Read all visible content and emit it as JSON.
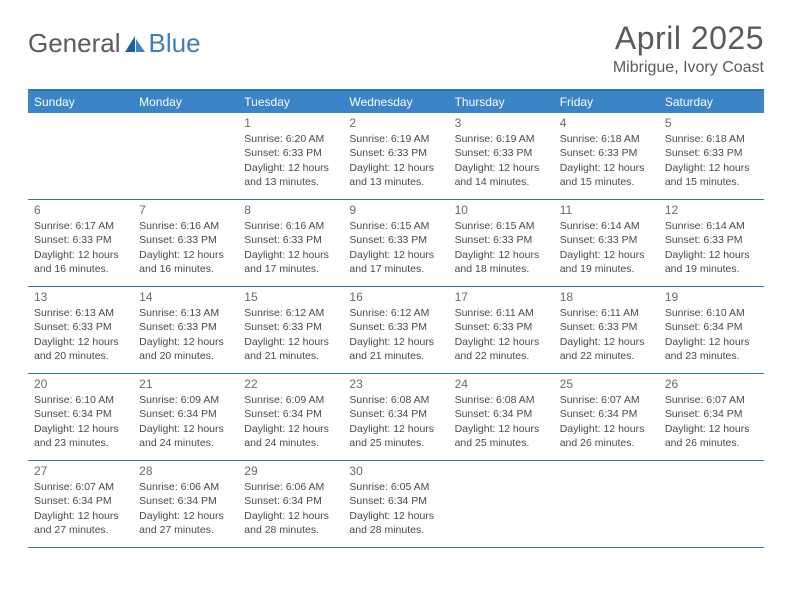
{
  "logo": {
    "general": "General",
    "blue": "Blue"
  },
  "title": "April 2025",
  "location": "Mibrigue, Ivory Coast",
  "colors": {
    "header_bg": "#3a84c7",
    "border": "#2f73b6",
    "text": "#4a4a4a",
    "logo_blue": "#3a7fc4",
    "logo_gray": "#5b5b5b",
    "background": "#ffffff"
  },
  "weekdays": [
    "Sunday",
    "Monday",
    "Tuesday",
    "Wednesday",
    "Thursday",
    "Friday",
    "Saturday"
  ],
  "weeks": [
    [
      null,
      null,
      {
        "date": "1",
        "sunrise": "Sunrise: 6:20 AM",
        "sunset": "Sunset: 6:33 PM",
        "daylight1": "Daylight: 12 hours",
        "daylight2": "and 13 minutes."
      },
      {
        "date": "2",
        "sunrise": "Sunrise: 6:19 AM",
        "sunset": "Sunset: 6:33 PM",
        "daylight1": "Daylight: 12 hours",
        "daylight2": "and 13 minutes."
      },
      {
        "date": "3",
        "sunrise": "Sunrise: 6:19 AM",
        "sunset": "Sunset: 6:33 PM",
        "daylight1": "Daylight: 12 hours",
        "daylight2": "and 14 minutes."
      },
      {
        "date": "4",
        "sunrise": "Sunrise: 6:18 AM",
        "sunset": "Sunset: 6:33 PM",
        "daylight1": "Daylight: 12 hours",
        "daylight2": "and 15 minutes."
      },
      {
        "date": "5",
        "sunrise": "Sunrise: 6:18 AM",
        "sunset": "Sunset: 6:33 PM",
        "daylight1": "Daylight: 12 hours",
        "daylight2": "and 15 minutes."
      }
    ],
    [
      {
        "date": "6",
        "sunrise": "Sunrise: 6:17 AM",
        "sunset": "Sunset: 6:33 PM",
        "daylight1": "Daylight: 12 hours",
        "daylight2": "and 16 minutes."
      },
      {
        "date": "7",
        "sunrise": "Sunrise: 6:16 AM",
        "sunset": "Sunset: 6:33 PM",
        "daylight1": "Daylight: 12 hours",
        "daylight2": "and 16 minutes."
      },
      {
        "date": "8",
        "sunrise": "Sunrise: 6:16 AM",
        "sunset": "Sunset: 6:33 PM",
        "daylight1": "Daylight: 12 hours",
        "daylight2": "and 17 minutes."
      },
      {
        "date": "9",
        "sunrise": "Sunrise: 6:15 AM",
        "sunset": "Sunset: 6:33 PM",
        "daylight1": "Daylight: 12 hours",
        "daylight2": "and 17 minutes."
      },
      {
        "date": "10",
        "sunrise": "Sunrise: 6:15 AM",
        "sunset": "Sunset: 6:33 PM",
        "daylight1": "Daylight: 12 hours",
        "daylight2": "and 18 minutes."
      },
      {
        "date": "11",
        "sunrise": "Sunrise: 6:14 AM",
        "sunset": "Sunset: 6:33 PM",
        "daylight1": "Daylight: 12 hours",
        "daylight2": "and 19 minutes."
      },
      {
        "date": "12",
        "sunrise": "Sunrise: 6:14 AM",
        "sunset": "Sunset: 6:33 PM",
        "daylight1": "Daylight: 12 hours",
        "daylight2": "and 19 minutes."
      }
    ],
    [
      {
        "date": "13",
        "sunrise": "Sunrise: 6:13 AM",
        "sunset": "Sunset: 6:33 PM",
        "daylight1": "Daylight: 12 hours",
        "daylight2": "and 20 minutes."
      },
      {
        "date": "14",
        "sunrise": "Sunrise: 6:13 AM",
        "sunset": "Sunset: 6:33 PM",
        "daylight1": "Daylight: 12 hours",
        "daylight2": "and 20 minutes."
      },
      {
        "date": "15",
        "sunrise": "Sunrise: 6:12 AM",
        "sunset": "Sunset: 6:33 PM",
        "daylight1": "Daylight: 12 hours",
        "daylight2": "and 21 minutes."
      },
      {
        "date": "16",
        "sunrise": "Sunrise: 6:12 AM",
        "sunset": "Sunset: 6:33 PM",
        "daylight1": "Daylight: 12 hours",
        "daylight2": "and 21 minutes."
      },
      {
        "date": "17",
        "sunrise": "Sunrise: 6:11 AM",
        "sunset": "Sunset: 6:33 PM",
        "daylight1": "Daylight: 12 hours",
        "daylight2": "and 22 minutes."
      },
      {
        "date": "18",
        "sunrise": "Sunrise: 6:11 AM",
        "sunset": "Sunset: 6:33 PM",
        "daylight1": "Daylight: 12 hours",
        "daylight2": "and 22 minutes."
      },
      {
        "date": "19",
        "sunrise": "Sunrise: 6:10 AM",
        "sunset": "Sunset: 6:34 PM",
        "daylight1": "Daylight: 12 hours",
        "daylight2": "and 23 minutes."
      }
    ],
    [
      {
        "date": "20",
        "sunrise": "Sunrise: 6:10 AM",
        "sunset": "Sunset: 6:34 PM",
        "daylight1": "Daylight: 12 hours",
        "daylight2": "and 23 minutes."
      },
      {
        "date": "21",
        "sunrise": "Sunrise: 6:09 AM",
        "sunset": "Sunset: 6:34 PM",
        "daylight1": "Daylight: 12 hours",
        "daylight2": "and 24 minutes."
      },
      {
        "date": "22",
        "sunrise": "Sunrise: 6:09 AM",
        "sunset": "Sunset: 6:34 PM",
        "daylight1": "Daylight: 12 hours",
        "daylight2": "and 24 minutes."
      },
      {
        "date": "23",
        "sunrise": "Sunrise: 6:08 AM",
        "sunset": "Sunset: 6:34 PM",
        "daylight1": "Daylight: 12 hours",
        "daylight2": "and 25 minutes."
      },
      {
        "date": "24",
        "sunrise": "Sunrise: 6:08 AM",
        "sunset": "Sunset: 6:34 PM",
        "daylight1": "Daylight: 12 hours",
        "daylight2": "and 25 minutes."
      },
      {
        "date": "25",
        "sunrise": "Sunrise: 6:07 AM",
        "sunset": "Sunset: 6:34 PM",
        "daylight1": "Daylight: 12 hours",
        "daylight2": "and 26 minutes."
      },
      {
        "date": "26",
        "sunrise": "Sunrise: 6:07 AM",
        "sunset": "Sunset: 6:34 PM",
        "daylight1": "Daylight: 12 hours",
        "daylight2": "and 26 minutes."
      }
    ],
    [
      {
        "date": "27",
        "sunrise": "Sunrise: 6:07 AM",
        "sunset": "Sunset: 6:34 PM",
        "daylight1": "Daylight: 12 hours",
        "daylight2": "and 27 minutes."
      },
      {
        "date": "28",
        "sunrise": "Sunrise: 6:06 AM",
        "sunset": "Sunset: 6:34 PM",
        "daylight1": "Daylight: 12 hours",
        "daylight2": "and 27 minutes."
      },
      {
        "date": "29",
        "sunrise": "Sunrise: 6:06 AM",
        "sunset": "Sunset: 6:34 PM",
        "daylight1": "Daylight: 12 hours",
        "daylight2": "and 28 minutes."
      },
      {
        "date": "30",
        "sunrise": "Sunrise: 6:05 AM",
        "sunset": "Sunset: 6:34 PM",
        "daylight1": "Daylight: 12 hours",
        "daylight2": "and 28 minutes."
      },
      null,
      null,
      null
    ]
  ]
}
